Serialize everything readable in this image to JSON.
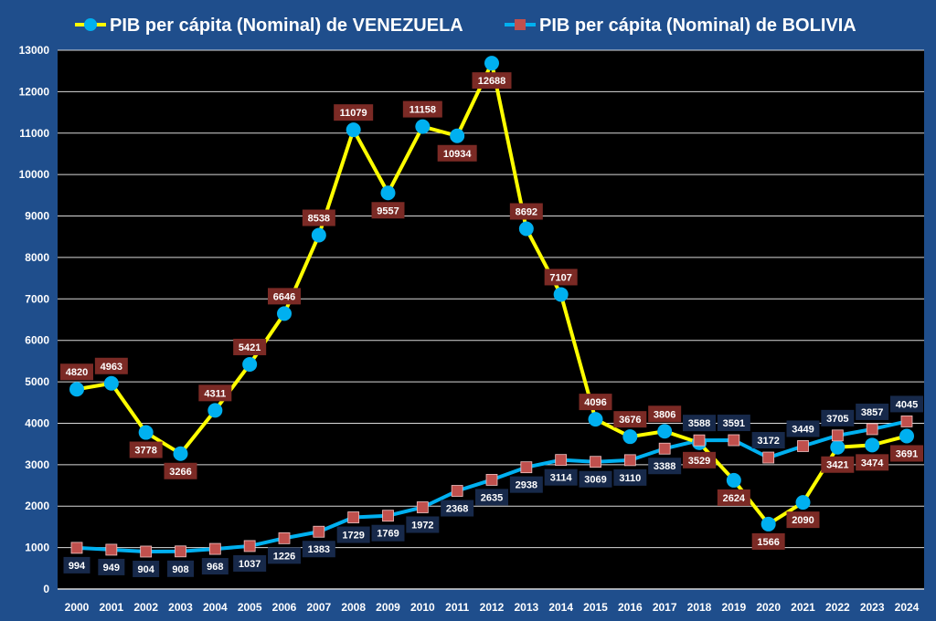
{
  "chart_data": {
    "type": "line",
    "title": "",
    "xlabel": "",
    "ylabel": "",
    "ylim": [
      0,
      13000
    ],
    "yticks": [
      0,
      1000,
      2000,
      3000,
      4000,
      5000,
      6000,
      7000,
      8000,
      9000,
      10000,
      11000,
      12000,
      13000
    ],
    "grid": true,
    "legend_position": "top",
    "x": [
      "2000",
      "2001",
      "2002",
      "2003",
      "2004",
      "2005",
      "2006",
      "2007",
      "2008",
      "2009",
      "2010",
      "2011",
      "2012",
      "2013",
      "2014",
      "2015",
      "2016",
      "2017",
      "2018",
      "2019",
      "2020",
      "2021",
      "2022",
      "2023",
      "2024"
    ],
    "series": [
      {
        "name": "PIB per cápita (Nominal) de VENEZUELA",
        "line_color": "#ffff00",
        "marker_color": "#00b0f0",
        "label_bg": "#7b2a25",
        "values": [
          4820,
          4963,
          3778,
          3266,
          4311,
          5421,
          6646,
          8538,
          11079,
          9557,
          11158,
          10934,
          12688,
          8692,
          7107,
          4096,
          3676,
          3806,
          3529,
          2624,
          1566,
          2090,
          3421,
          3474,
          3691
        ]
      },
      {
        "name": "PIB per cápita (Nominal) de BOLIVIA",
        "line_color": "#00b0f0",
        "marker_color": "#c0504d",
        "label_bg": "#17294a",
        "values": [
          994,
          949,
          904,
          908,
          968,
          1037,
          1226,
          1383,
          1729,
          1769,
          1972,
          2368,
          2635,
          2938,
          3114,
          3069,
          3110,
          3388,
          3588,
          3591,
          3172,
          3449,
          3705,
          3857,
          4045
        ]
      }
    ]
  }
}
